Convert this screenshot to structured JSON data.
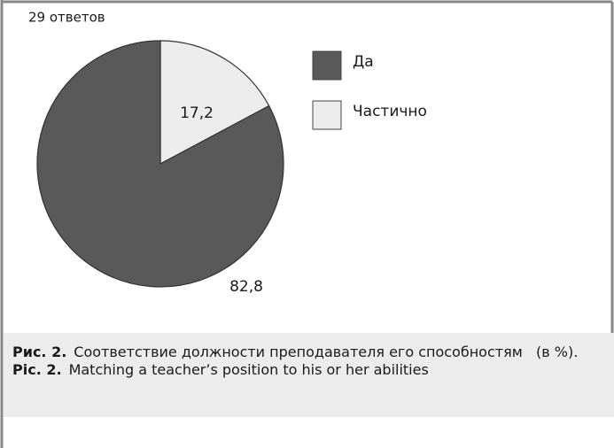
{
  "chart_data": {
    "type": "pie",
    "subtitle": "29 ответов",
    "categories": [
      "Да",
      "Частично"
    ],
    "values": [
      82.8,
      17.2
    ],
    "value_labels": [
      "82,8",
      "17,2"
    ],
    "colors": [
      "#595959",
      "#ececec"
    ],
    "legend": "right"
  },
  "caption": [
    {
      "label": "Рис. 2.",
      "text": "Соответствие должности преподавателя его способностям   (в %)."
    },
    {
      "label": "Pic. 2.",
      "text": "Matching a teacher’s position to his or her abilities"
    }
  ]
}
